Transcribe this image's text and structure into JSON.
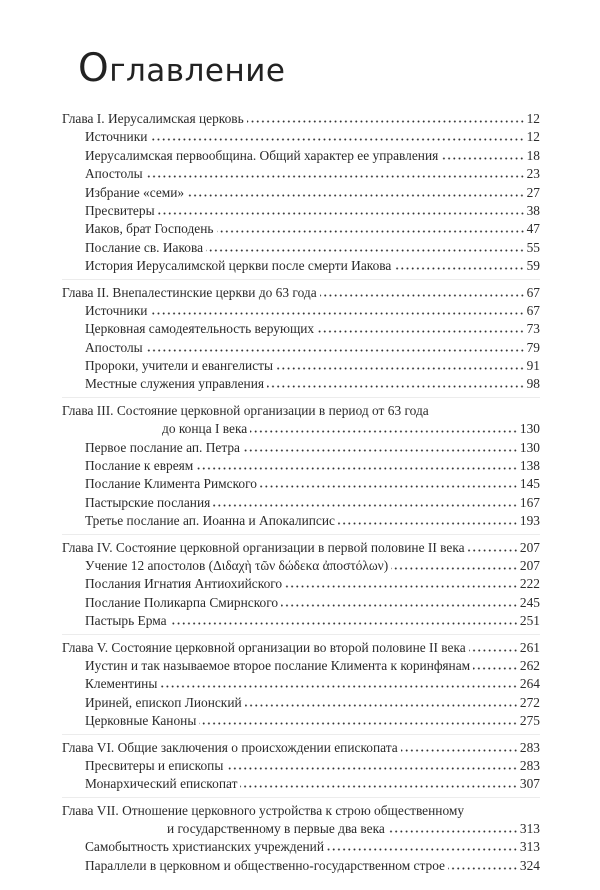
{
  "title_first_letter": "О",
  "title_rest": "главление",
  "chapters": [
    {
      "title": "Глава I. Иерусалимская церковь",
      "page": "12",
      "items": [
        {
          "label": "Источники",
          "page": "12"
        },
        {
          "label": "Иерусалимская первообщина. Общий характер ее управления",
          "page": "18"
        },
        {
          "label": "Апостолы",
          "page": "23"
        },
        {
          "label": "Избрание «семи»",
          "page": "27"
        },
        {
          "label": "Пресвитеры",
          "page": "38"
        },
        {
          "label": "Иаков, брат Господень",
          "page": "47"
        },
        {
          "label": "Послание св. Иакова",
          "page": "55"
        },
        {
          "label": "История Иерусалимской церкви после смерти Иакова",
          "page": "59"
        }
      ]
    },
    {
      "title": "Глава II. Внепалестинские церкви до 63 года",
      "page": "67",
      "items": [
        {
          "label": "Источники",
          "page": "67"
        },
        {
          "label": "Церковная самодеятельность верующих",
          "page": "73"
        },
        {
          "label": "Апостолы",
          "page": "79"
        },
        {
          "label": "Пророки, учители и евангелисты",
          "page": "91"
        },
        {
          "label": "Местные служения управления",
          "page": "98"
        }
      ]
    },
    {
      "title": "Глава III. Состояние церковной организации в период от 63 года",
      "title_cont": "до конца I века",
      "page": "130",
      "items": [
        {
          "label": "Первое послание ап. Петра",
          "page": "130"
        },
        {
          "label": "Послание к евреям",
          "page": "138"
        },
        {
          "label": "Послание Климента Римского",
          "page": "145"
        },
        {
          "label": "Пастырские послания",
          "page": "167"
        },
        {
          "label": "Третье послание ап. Иоанна и Апокалипсис",
          "page": "193"
        }
      ]
    },
    {
      "title": "Глава IV. Состояние церковной организации в первой половине II века",
      "page": "207",
      "items": [
        {
          "label": "Учение 12 апостолов (Διδαχὴ τῶν δώδεκα ἀποστόλων)",
          "page": "207"
        },
        {
          "label": "Послания Игнатия Антиохийского",
          "page": "222"
        },
        {
          "label": "Послание Поликарпа Смирнского",
          "page": "245"
        },
        {
          "label": "Пастырь Ерма",
          "page": "251"
        }
      ]
    },
    {
      "title": "Глава V. Состояние церковной организации во второй половине II века",
      "page": "261",
      "items": [
        {
          "label": "Иустин и так называемое второе послание Климента к коринфянам",
          "page": "262"
        },
        {
          "label": "Клементины",
          "page": "264"
        },
        {
          "label": "Ириней, епископ Лионский",
          "page": "272"
        },
        {
          "label": "Церковные Каноны",
          "page": "275"
        }
      ]
    },
    {
      "title": "Глава VI. Общие заключения о происхождении епископата",
      "page": "283",
      "items": [
        {
          "label": "Пресвитеры и епископы",
          "page": "283"
        },
        {
          "label": "Монархический епископат",
          "page": "307"
        }
      ]
    },
    {
      "title": "Глава VII. Отношение церковного устройства к строю общественному",
      "title_cont": "и государственному в первые два века",
      "page": "313",
      "items": [
        {
          "label": "Самобытность христианских учреждений",
          "page": "313"
        },
        {
          "label": "Параллели в церковном и общественно-государственном строе",
          "page": "324"
        }
      ]
    }
  ]
}
